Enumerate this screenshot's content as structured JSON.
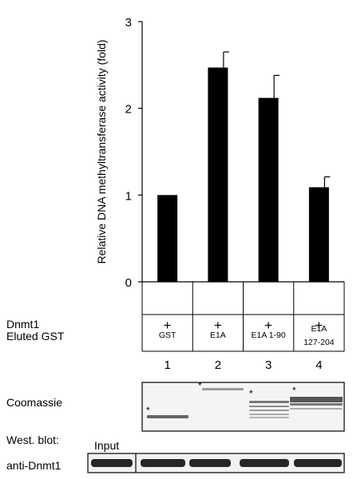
{
  "chart_data": {
    "type": "bar",
    "ylabel": "Relative DNA methyltransferase activity (fold)",
    "ylim": [
      0,
      3
    ],
    "yticks": [
      "0",
      "1",
      "2",
      "3"
    ],
    "categories": [
      "GST",
      "E1A",
      "E1A 1-90",
      "E1A 127-204"
    ],
    "values": [
      1.0,
      2.47,
      2.12,
      1.09
    ],
    "errors": [
      0,
      0.18,
      0.26,
      0.12
    ],
    "grid": false,
    "bar_color": "#000000"
  },
  "table": {
    "row1_label": "Dnmt1",
    "row1_values": [
      "+",
      "+",
      "+",
      "+"
    ],
    "row2_label": "Eluted GST",
    "row2_values": [
      [
        "GST"
      ],
      [
        "E1A"
      ],
      [
        "E1A 1-90"
      ],
      [
        "E1A",
        "127-204"
      ]
    ]
  },
  "lane_numbers": [
    "1",
    "2",
    "3",
    "4"
  ],
  "coomassie_label": "Coomassie",
  "western_label": "West. blot:",
  "input_label": "Input",
  "antibody_label": "anti-Dnmt1",
  "band_marker": "*"
}
